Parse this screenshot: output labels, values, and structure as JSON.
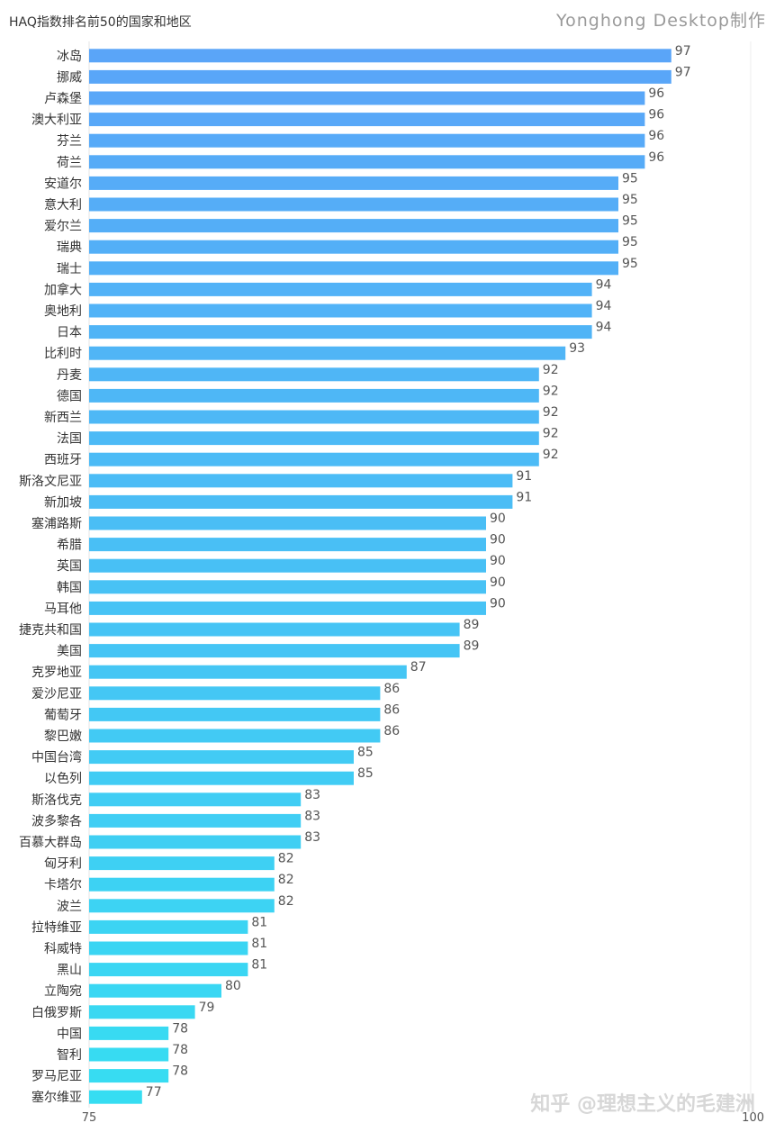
{
  "title": "HAQ指数排名前50的国家和地区",
  "brand": "Yonghong Desktop制作",
  "watermark": "知乎 @理想主义的毛建洲",
  "chart_data": {
    "type": "bar",
    "orientation": "horizontal",
    "title": "HAQ指数排名前50的国家和地区",
    "xlabel": "",
    "ylabel": "",
    "xlim": [
      75,
      100
    ],
    "xticks": [
      "75",
      "100"
    ],
    "grid": false,
    "legend": "none",
    "colors": {
      "top": "#5AA5F8",
      "bottom": "#36DDF2"
    },
    "categories": [
      "冰岛",
      "挪威",
      "卢森堡",
      "澳大利亚",
      "芬兰",
      "荷兰",
      "安道尔",
      "意大利",
      "爱尔兰",
      "瑞典",
      "瑞士",
      "加拿大",
      "奥地利",
      "日本",
      "比利时",
      "丹麦",
      "德国",
      "新西兰",
      "法国",
      "西班牙",
      "斯洛文尼亚",
      "新加坡",
      "塞浦路斯",
      "希腊",
      "英国",
      "韩国",
      "马耳他",
      "捷克共和国",
      "美国",
      "克罗地亚",
      "爱沙尼亚",
      "葡萄牙",
      "黎巴嫩",
      "中国台湾",
      "以色列",
      "斯洛伐克",
      "波多黎各",
      "百慕大群岛",
      "匈牙利",
      "卡塔尔",
      "波兰",
      "拉特维亚",
      "科威特",
      "黑山",
      "立陶宛",
      "白俄罗斯",
      "中国",
      "智利",
      "罗马尼亚",
      "塞尔维亚"
    ],
    "values": [
      97,
      97,
      96,
      96,
      96,
      96,
      95,
      95,
      95,
      95,
      95,
      94,
      94,
      94,
      93,
      92,
      92,
      92,
      92,
      92,
      91,
      91,
      90,
      90,
      90,
      90,
      90,
      89,
      89,
      87,
      86,
      86,
      86,
      85,
      85,
      83,
      83,
      83,
      82,
      82,
      82,
      81,
      81,
      81,
      80,
      79,
      78,
      78,
      78,
      77
    ]
  }
}
